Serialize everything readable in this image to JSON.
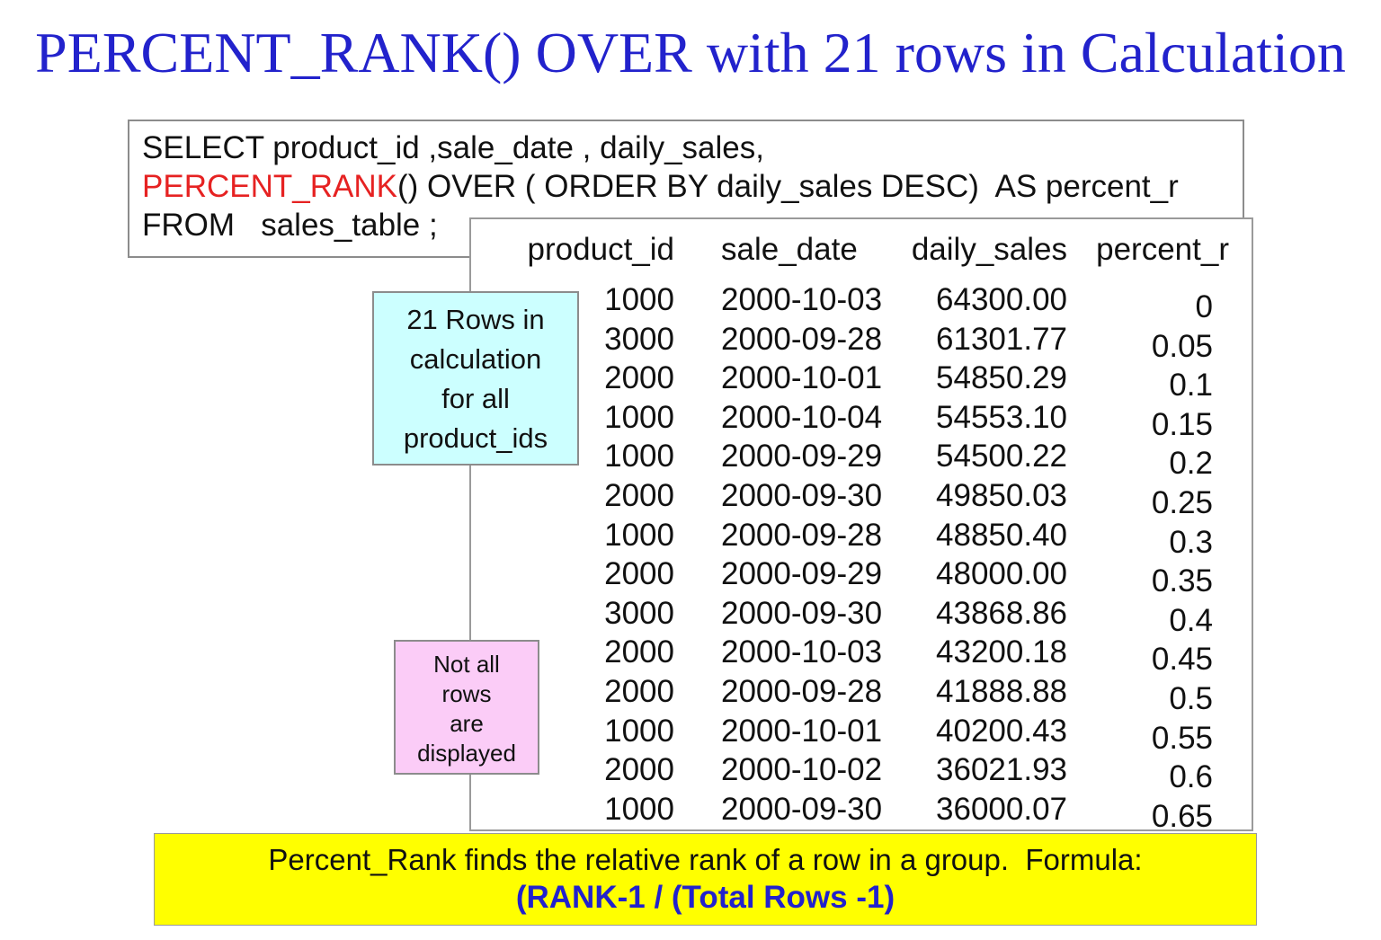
{
  "title": "PERCENT_RANK() OVER with 21 rows in Calculation",
  "sql_box": {
    "line1": "SELECT product_id ,sale_date , daily_sales,",
    "line2_keyword": "PERCENT_RANK",
    "line2_rest": "() OVER ( ORDER BY daily_sales DESC)  AS percent_r",
    "line3": "FROM   sales_table ;"
  },
  "result_table": {
    "columns": [
      "product_id",
      "sale_date",
      "daily_sales",
      "percent_r"
    ],
    "rows": [
      [
        "1000",
        "2000-10-03",
        "64300.00",
        "0"
      ],
      [
        "3000",
        "2000-09-28",
        "61301.77",
        "0.05"
      ],
      [
        "2000",
        "2000-10-01",
        "54850.29",
        "0.1"
      ],
      [
        "1000",
        "2000-10-04",
        "54553.10",
        "0.15"
      ],
      [
        "1000",
        "2000-09-29",
        "54500.22",
        "0.2"
      ],
      [
        "2000",
        "2000-09-30",
        "49850.03",
        "0.25"
      ],
      [
        "1000",
        "2000-09-28",
        "48850.40",
        "0.3"
      ],
      [
        "2000",
        "2000-09-29",
        "48000.00",
        "0.35"
      ],
      [
        "3000",
        "2000-09-30",
        "43868.86",
        "0.4"
      ],
      [
        "2000",
        "2000-10-03",
        "43200.18",
        "0.45"
      ],
      [
        "2000",
        "2000-09-28",
        "41888.88",
        "0.5"
      ],
      [
        "1000",
        "2000-10-01",
        "40200.43",
        "0.55"
      ],
      [
        "2000",
        "2000-10-02",
        "36021.93",
        "0.6"
      ],
      [
        "1000",
        "2000-09-30",
        "36000.07",
        "0.65"
      ]
    ]
  },
  "callouts": {
    "cyan_lines": [
      "21 Rows in",
      "calculation",
      "for all",
      "product_ids"
    ],
    "pink_lines": [
      "Not all",
      "rows",
      "are",
      "displayed"
    ]
  },
  "footer": {
    "line1": "Percent_Rank finds the relative rank of a row in a group.  Formula:",
    "formula": "(RANK-1 / (Total Rows -1)"
  },
  "colors": {
    "title_blue": "#2222CC",
    "keyword_red": "#E62222",
    "cyan_box": "#CCFFFF",
    "pink_box": "#FBCCF7",
    "yellow_box": "#FFFF00",
    "border_gray": "#8C8C8C"
  }
}
